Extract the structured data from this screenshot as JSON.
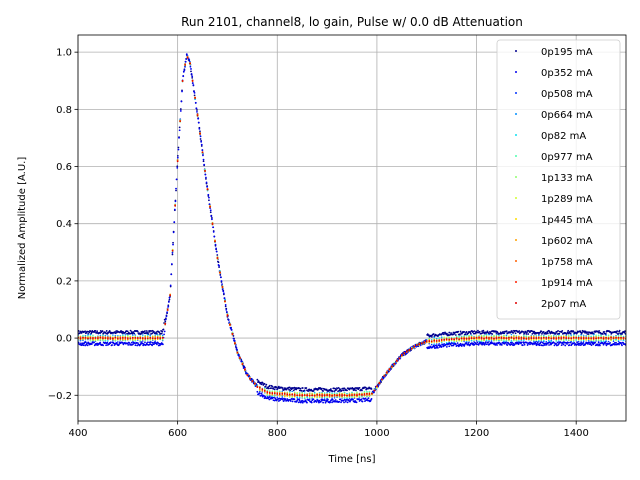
{
  "chart_data": {
    "type": "scatter",
    "title": "Run 2101, channel8, lo gain, Pulse w/ 0.0 dB Attenuation",
    "xlabel": "Time [ns]",
    "ylabel": "Normalized Amplitude [A.U.]",
    "xlim": [
      400,
      1500
    ],
    "ylim": [
      -0.29,
      1.06
    ],
    "xticks": [
      400,
      600,
      800,
      1000,
      1200,
      1400
    ],
    "yticks": [
      -0.2,
      0.0,
      0.2,
      0.4,
      0.6,
      0.8,
      1.0
    ],
    "xtick_labels": [
      "400",
      "600",
      "800",
      "1000",
      "1200",
      "1400"
    ],
    "ytick_labels": [
      "−0.2",
      "0.0",
      "0.2",
      "0.4",
      "0.6",
      "0.8",
      "1.0"
    ],
    "grid": true,
    "legend_position": "top-right",
    "series": [
      {
        "name": "0p195 mA",
        "color": "#00008f"
      },
      {
        "name": "0p352 mA",
        "color": "#0000ee"
      },
      {
        "name": "0p508 mA",
        "color": "#0033ff"
      },
      {
        "name": "0p664 mA",
        "color": "#0090ff"
      },
      {
        "name": "0p82 mA",
        "color": "#10e0f0"
      },
      {
        "name": "0p977 mA",
        "color": "#50ffb0"
      },
      {
        "name": "1p133 mA",
        "color": "#90ff70"
      },
      {
        "name": "1p289 mA",
        "color": "#d0ff30"
      },
      {
        "name": "1p445 mA",
        "color": "#ffe000"
      },
      {
        "name": "1p602 mA",
        "color": "#ffa000"
      },
      {
        "name": "1p758 mA",
        "color": "#ff6000"
      },
      {
        "name": "1p914 mA",
        "color": "#ff2000"
      },
      {
        "name": "2p07 mA",
        "color": "#e00000"
      }
    ],
    "pulse_shape": {
      "time_ns": [
        400,
        570,
        585,
        600,
        610,
        618,
        625,
        640,
        660,
        680,
        700,
        720,
        740,
        760,
        780,
        800,
        850,
        900,
        950,
        990,
        1000,
        1020,
        1050,
        1080,
        1100,
        1150,
        1200,
        1300,
        1400,
        1500
      ],
      "amplitude": [
        0.0,
        0.0,
        0.15,
        0.62,
        0.9,
        0.99,
        0.96,
        0.78,
        0.52,
        0.28,
        0.08,
        -0.05,
        -0.13,
        -0.17,
        -0.19,
        -0.195,
        -0.2,
        -0.2,
        -0.2,
        -0.195,
        -0.17,
        -0.12,
        -0.06,
        -0.025,
        -0.012,
        -0.004,
        0.0,
        0.0,
        0.0,
        0.0
      ]
    },
    "baseline_spread": 0.02
  }
}
